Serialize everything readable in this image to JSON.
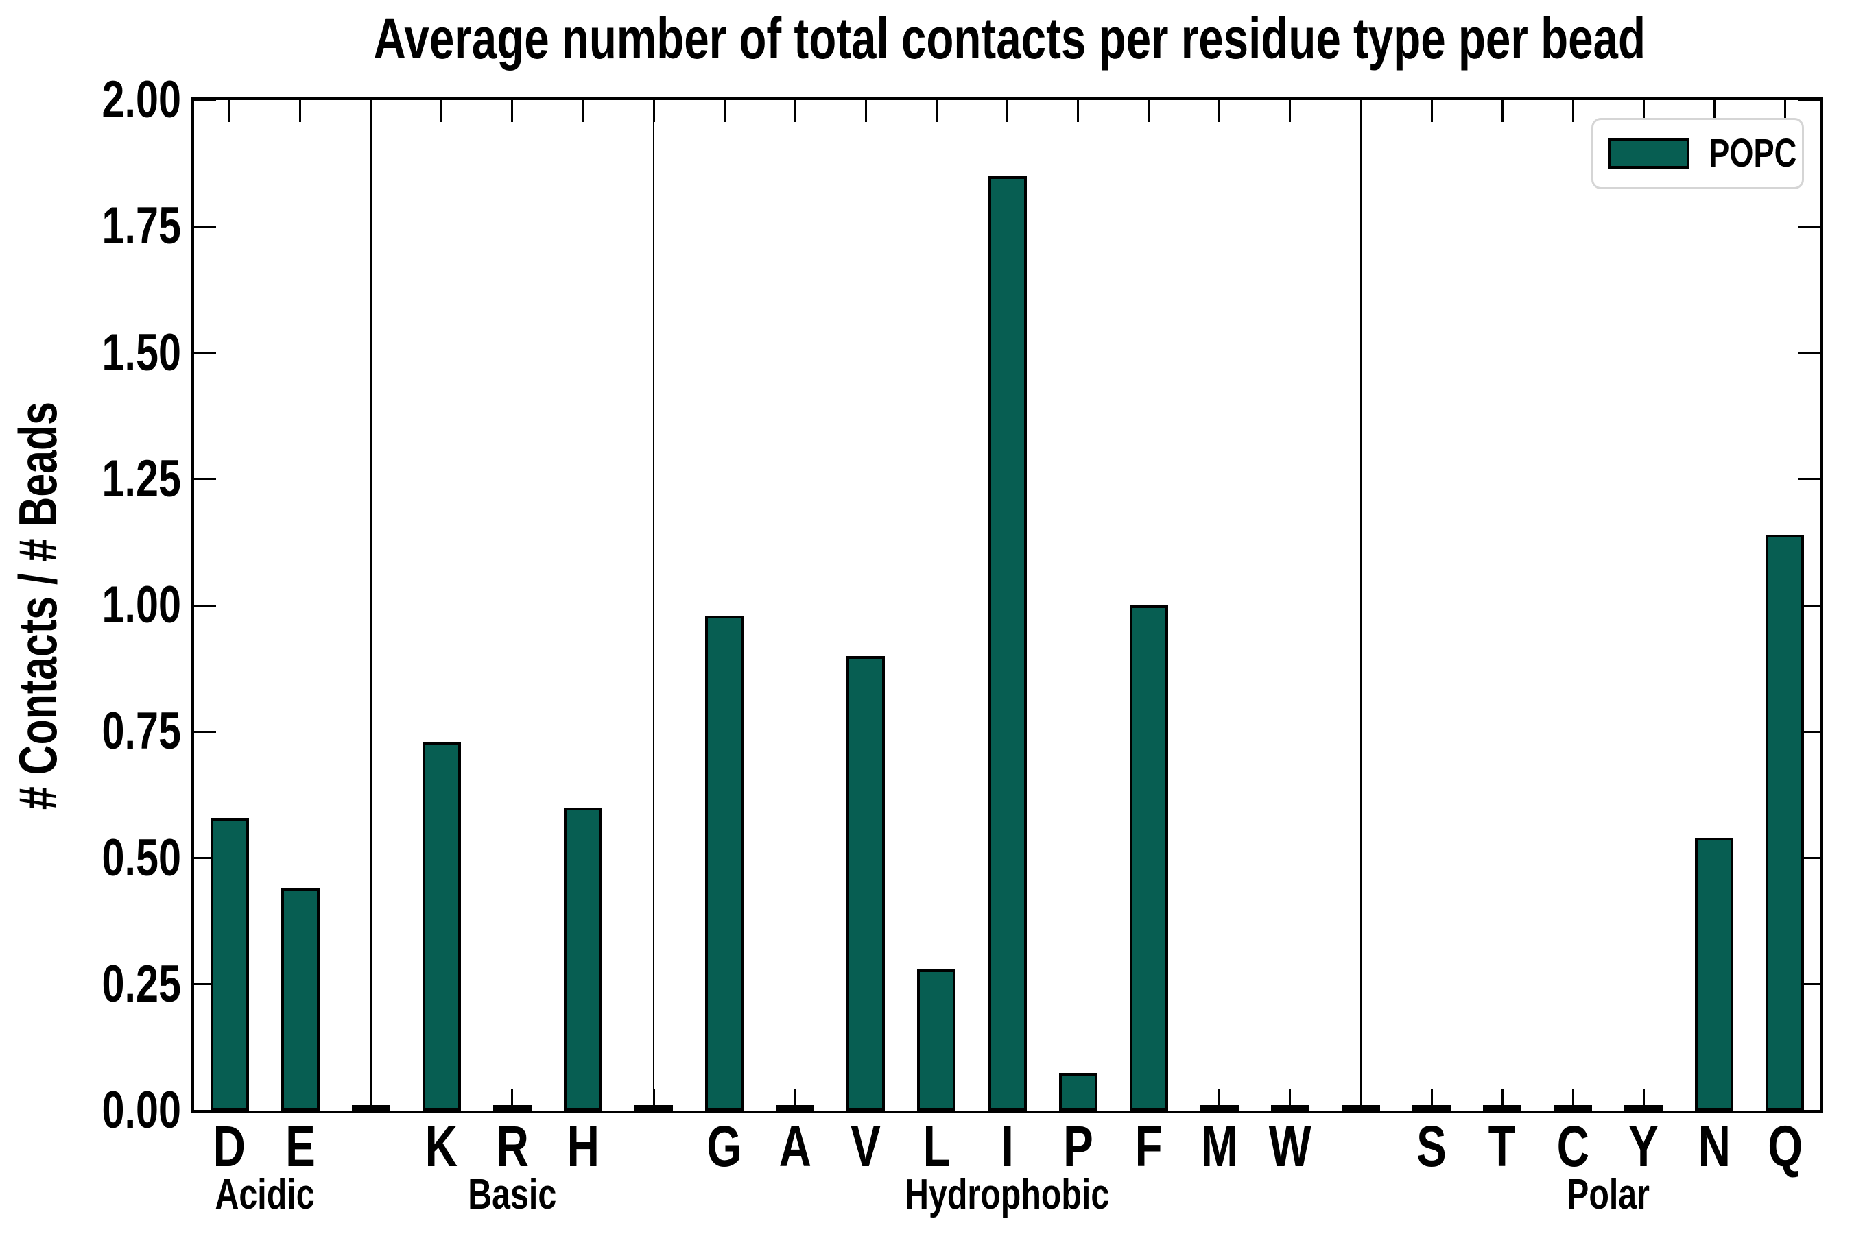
{
  "figure": {
    "title": "Average number of total contacts per residue type per bead",
    "ylabel": "# Contacts / # Beads",
    "background_color": "#ffffff",
    "axis_color": "#000000"
  },
  "legend": {
    "label": "POPC",
    "swatch_color": "#075e52",
    "swatch_edge_color": "#000000",
    "border_color": "#d5d5d5",
    "position": "upper right"
  },
  "chart_data": {
    "type": "bar",
    "title": "Average number of total contacts per residue type per bead",
    "xlabel": "",
    "ylabel": "# Contacts / # Beads",
    "ylim": [
      0,
      2.0
    ],
    "ytick_step": 0.25,
    "ytick_labels": [
      "0.00",
      "0.25",
      "0.50",
      "0.75",
      "1.00",
      "1.25",
      "1.50",
      "1.75",
      "2.00"
    ],
    "grid": false,
    "bar_color": "#075e52",
    "bar_edge_color": "#000000",
    "separator_color": "#000000",
    "legend": [
      {
        "label": "POPC",
        "color": "#075e52"
      }
    ],
    "legend_position": "upper right",
    "categories": [
      "D",
      "E",
      "K",
      "R",
      "H",
      "G",
      "A",
      "V",
      "L",
      "I",
      "P",
      "F",
      "M",
      "W",
      "S",
      "T",
      "C",
      "Y",
      "N",
      "Q"
    ],
    "values": [
      0.58,
      0.44,
      0.73,
      0.0,
      0.6,
      0.98,
      0.0,
      0.9,
      0.28,
      1.85,
      0.075,
      1.0,
      0.0,
      0.0,
      0.0,
      0.0,
      0.0,
      0.0,
      0.54,
      1.14
    ],
    "groups": [
      {
        "label": "Acidic",
        "categories": [
          "D",
          "E"
        ]
      },
      {
        "label": "Basic",
        "categories": [
          "K",
          "R",
          "H"
        ]
      },
      {
        "label": "Hydrophobic",
        "categories": [
          "G",
          "A",
          "V",
          "L",
          "I",
          "P",
          "F",
          "M",
          "W"
        ]
      },
      {
        "label": "Polar",
        "categories": [
          "S",
          "T",
          "C",
          "Y",
          "N",
          "Q"
        ]
      }
    ]
  }
}
